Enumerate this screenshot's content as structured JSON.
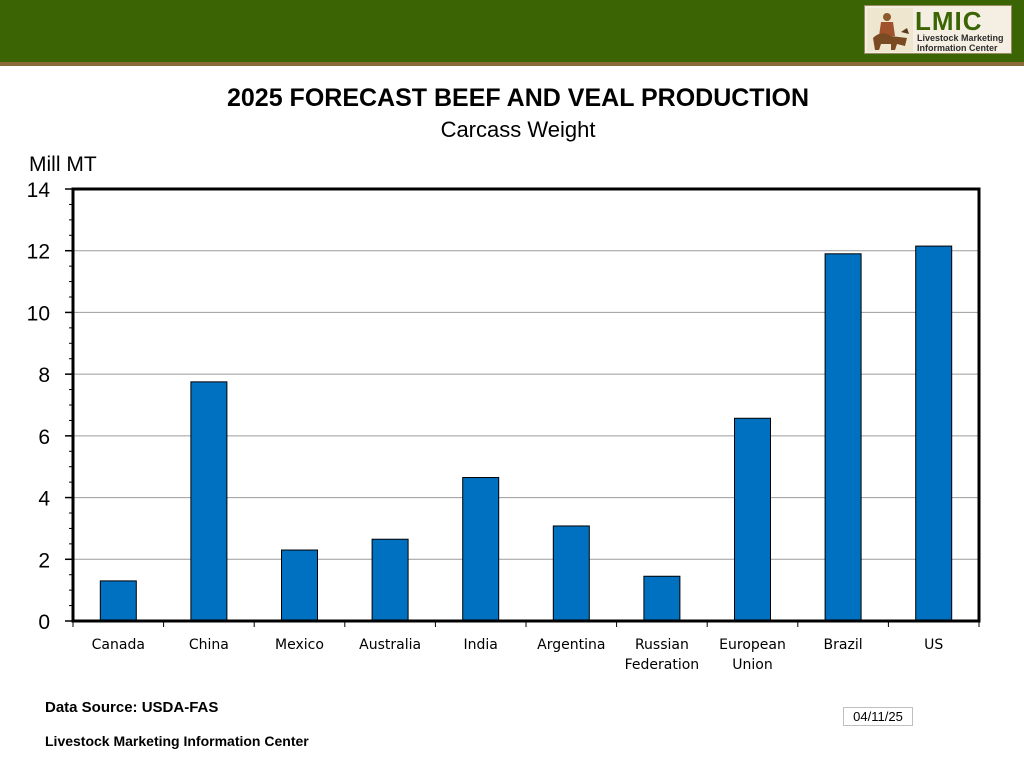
{
  "header": {
    "logo": {
      "acronym": "LMIC",
      "line1": "Livestock Marketing",
      "line2": "Information Center"
    }
  },
  "chart_data": {
    "type": "bar",
    "title": "2025 FORECAST BEEF AND VEAL PRODUCTION",
    "subtitle": "Carcass Weight",
    "ylabel": "Mill MT",
    "xlabel": "",
    "ylim": [
      0,
      14
    ],
    "yticks": [
      0,
      2,
      4,
      6,
      8,
      10,
      12,
      14
    ],
    "grid": true,
    "categories": [
      "Canada",
      "China",
      "Mexico",
      "Australia",
      "India",
      "Argentina",
      "Russian Federation",
      "European Union",
      "Brazil",
      "US"
    ],
    "category_lines": [
      [
        "Canada"
      ],
      [
        "China"
      ],
      [
        "Mexico"
      ],
      [
        "Australia"
      ],
      [
        "India"
      ],
      [
        "Argentina"
      ],
      [
        "Russian",
        "Federation"
      ],
      [
        "European",
        "Union"
      ],
      [
        "Brazil"
      ],
      [
        "US"
      ]
    ],
    "values": [
      1.3,
      7.75,
      2.3,
      2.65,
      4.65,
      3.08,
      1.45,
      6.57,
      11.9,
      12.15
    ],
    "bar_color": "#0070c0"
  },
  "footer": {
    "source": "Data Source:  USDA-FAS",
    "organization": "Livestock Marketing Information Center",
    "date": "04/11/25"
  }
}
